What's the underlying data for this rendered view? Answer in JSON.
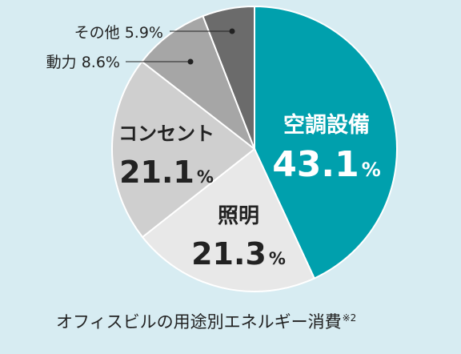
{
  "chart_data": {
    "type": "pie",
    "title": "オフィスビルの用途別エネルギー消費",
    "title_note": "※2",
    "slices": [
      {
        "label": "空調設備",
        "value": 43.1,
        "display": "43.1",
        "unit": "%",
        "color": "#00a0ad",
        "text_color": "#ffffff"
      },
      {
        "label": "照明",
        "value": 21.3,
        "display": "21.3",
        "unit": "%",
        "color": "#e8e8e8",
        "text_color": "#222222"
      },
      {
        "label": "コンセント",
        "value": 21.1,
        "display": "21.1",
        "unit": "%",
        "color": "#cfcfcf",
        "text_color": "#222222"
      },
      {
        "label": "動力",
        "value": 8.6,
        "display": "8.6",
        "unit": "%",
        "color": "#a6a6a6",
        "text_color": "#222222"
      },
      {
        "label": "その他",
        "value": 5.9,
        "display": "5.9",
        "unit": "%",
        "color": "#6b6b6b",
        "text_color": "#222222"
      }
    ],
    "start_angle_deg": 0,
    "direction": "clockwise",
    "legend": "none"
  }
}
